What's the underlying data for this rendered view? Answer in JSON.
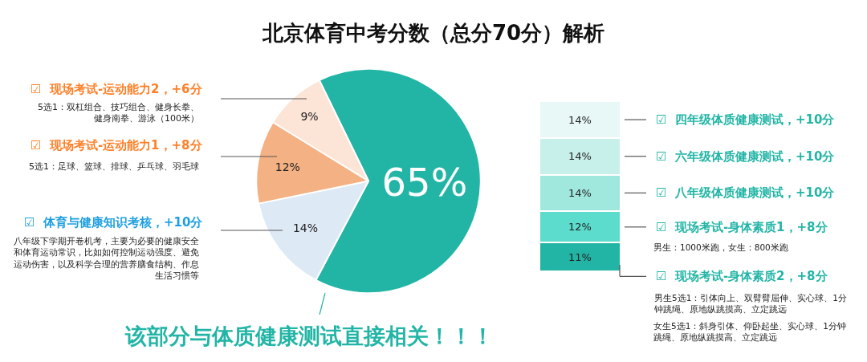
{
  "chart_data": [
    {
      "type": "pie",
      "title": "北京体育中考分数（总分70分）解析",
      "categories": [
        null,
        null,
        null,
        null
      ],
      "values": [
        65,
        14,
        12,
        9
      ],
      "value_labels": [
        "65%",
        "14%",
        "12%",
        "9%"
      ],
      "colors": [
        "#22b5a5",
        "#dde9f5",
        "#f4b183",
        "#fce4d6"
      ],
      "annotations": [
        "☑  现场考试-运动能力2，+6分",
        "5选1：双杠组合、技巧组合、健身长拳、健身南拳、游泳（100米）",
        "☑  现场考试-运动能力1，+8分",
        "5选1：足球、篮球、排球、乒乓球、羽毛球",
        "☑  体育与健康知识考核，+10分",
        "八年级下学期开卷机考，主要为必要的健康安全和体育运动常识，比如如何控制运动强度、避免运动伤害，以及科学合理的营养膳食结构、作息生活习惯等",
        "该部分与体质健康测试直接相关！！！"
      ]
    },
    {
      "type": "bar",
      "stacked": true,
      "legend": "right",
      "categories": [
        null
      ],
      "ylim": [
        0,
        65
      ],
      "tick_labels": false,
      "series": [
        {
          "name": "☑  现场考试-身体素质2，+8分",
          "color": "#22b5a5",
          "values": [
            11
          ],
          "value_labels": [
            "11%"
          ]
        },
        {
          "name": "☑  现场考试-身体素质1，+8分",
          "color": "#5cdccc",
          "values": [
            12
          ],
          "value_labels": [
            "12%"
          ]
        },
        {
          "name": "☑  八年级体质健康测试，+10分",
          "color": "#a0e8de",
          "values": [
            14
          ],
          "value_labels": [
            "14%"
          ]
        },
        {
          "name": "☑  六年级体质健康测试，+10分",
          "color": "#c8f0ea",
          "values": [
            14
          ],
          "value_labels": [
            "14%"
          ]
        },
        {
          "name": "☑  四年级体质健康测试，+10分",
          "color": "#e8f8f6",
          "values": [
            14
          ],
          "value_labels": [
            "14%"
          ]
        }
      ],
      "annotations": [
        "男生：1000米跑，女生：800米跑",
        "男生5选1：引体向上、双臂臂屈伸、实心球、1分钟跳绳、原地纵跳摸高、立定跳远",
        "女生5选1：斜身引体、仰卧起坐、实心球、1分钟跳绳、原地纵跳摸高、立定跳远"
      ]
    }
  ]
}
